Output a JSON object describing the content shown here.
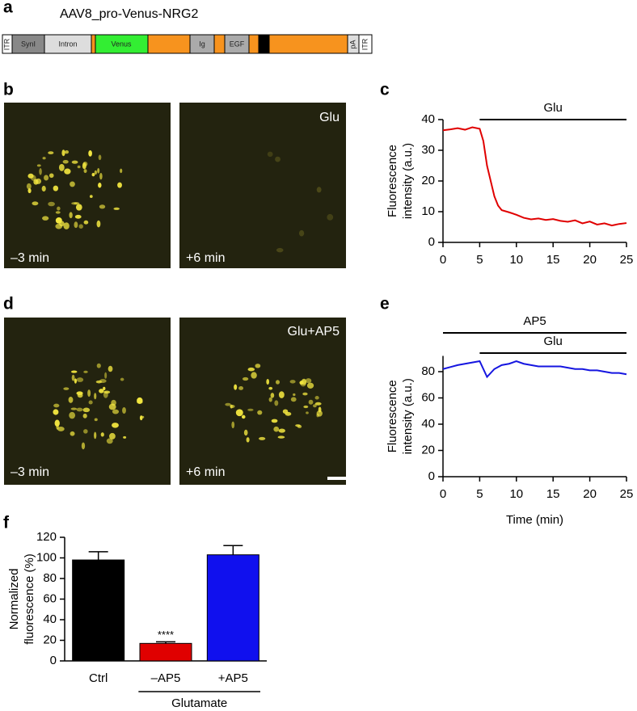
{
  "panel_labels": [
    "a",
    "b",
    "c",
    "d",
    "e",
    "f"
  ],
  "construct": {
    "title": "AAV8_pro-Venus-NRG2",
    "labels": [
      "ITR",
      "SynI",
      "Intron",
      "Venus",
      "Ig",
      "EGF",
      "pA",
      "ITR"
    ]
  },
  "images": {
    "b": {
      "left": "–3 min",
      "right": "+6 min",
      "condition": "Glu"
    },
    "d": {
      "left": "–3 min",
      "right": "+6 min",
      "condition": "Glu+AP5"
    }
  },
  "chart_data": [
    {
      "type": "line",
      "ylabel_lines": [
        "Fluorescence",
        "intensity (a.u.)"
      ],
      "color": "#e00000",
      "x": [
        0,
        1,
        2,
        3,
        4,
        5,
        5.5,
        6,
        7,
        7.5,
        8,
        9,
        10,
        11,
        12,
        13,
        14,
        15,
        16,
        17,
        18,
        19,
        20,
        21,
        22,
        23,
        24,
        25
      ],
      "values": [
        36.5,
        36.8,
        37.2,
        36.7,
        37.5,
        37,
        33,
        25,
        15,
        12,
        10.5,
        9.8,
        9,
        8,
        7.5,
        7.8,
        7.3,
        7.6,
        7,
        6.7,
        7.2,
        6.2,
        6.8,
        5.8,
        6.2,
        5.5,
        6,
        6.3
      ],
      "xlim": [
        0,
        25
      ],
      "xticks": [
        0,
        5,
        10,
        15,
        20,
        25
      ],
      "ylim": [
        0,
        40
      ],
      "yticks": [
        0,
        10,
        20,
        30,
        40
      ],
      "annotations": [
        {
          "label": "Glu",
          "x": [
            5,
            25
          ]
        }
      ]
    },
    {
      "type": "line",
      "ylabel_lines": [
        "Fluorescence",
        "intensity (a.u.)"
      ],
      "xlabel": "Time (min)",
      "color": "#1515e0",
      "x": [
        0,
        1,
        2,
        3,
        4,
        5,
        5.5,
        6,
        7,
        8,
        9,
        10,
        11,
        12,
        13,
        14,
        15,
        16,
        17,
        18,
        19,
        20,
        21,
        22,
        23,
        24,
        25
      ],
      "values": [
        82,
        83.5,
        85,
        86,
        87,
        88,
        82,
        76,
        82,
        85,
        86,
        88,
        86,
        85,
        84,
        84,
        84,
        84,
        83,
        82,
        82,
        81,
        81,
        80,
        79,
        79,
        78
      ],
      "xlim": [
        0,
        25
      ],
      "xticks": [
        0,
        5,
        10,
        15,
        20,
        25
      ],
      "ylim": [
        0,
        92
      ],
      "yticks": [
        0,
        20,
        40,
        60,
        80
      ],
      "annotations": [
        {
          "label": "AP5",
          "x": [
            0,
            25
          ]
        },
        {
          "label": "Glu",
          "x": [
            5,
            25
          ]
        }
      ]
    },
    {
      "type": "bar",
      "ylabel_lines": [
        "Normalized",
        "fluorescence (%)"
      ],
      "categories": [
        "Ctrl",
        "–AP5",
        "+AP5"
      ],
      "values": [
        98,
        17,
        103
      ],
      "errors": [
        8,
        1.5,
        9
      ],
      "colors": [
        "#000000",
        "#e00000",
        "#1010ee"
      ],
      "significance_labels": [
        null,
        "****",
        null
      ],
      "group_label": "Glutamate",
      "ylim": [
        0,
        120
      ],
      "yticks": [
        0,
        20,
        40,
        60,
        80,
        100,
        120
      ]
    }
  ]
}
